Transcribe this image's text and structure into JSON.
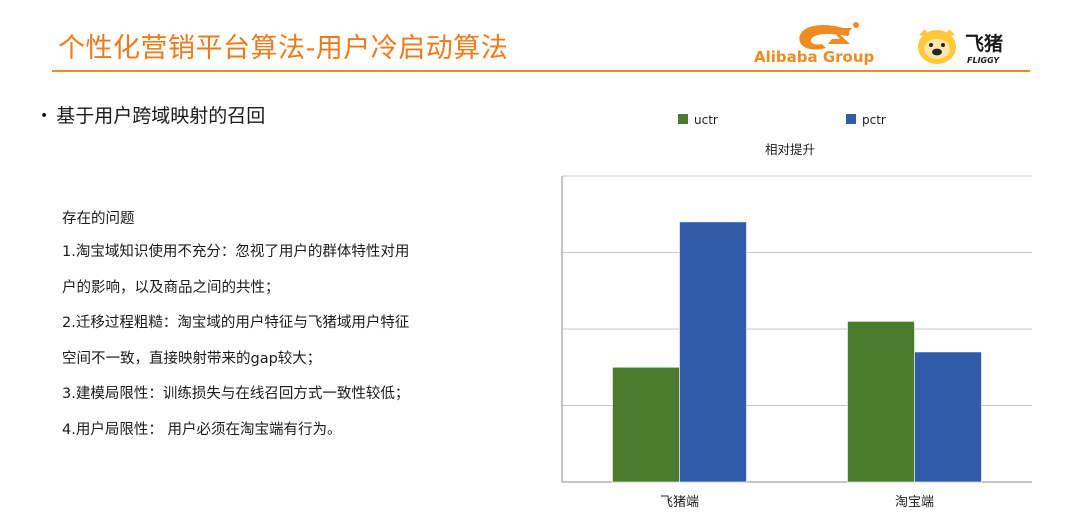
{
  "header": {
    "title": "个性化营销平台算法-用户冷启动算法",
    "alibaba_logo_text": "Alibaba Group",
    "fliggy_logo_cn": "飞猪",
    "fliggy_logo_en": "FLIGGY"
  },
  "bullet": {
    "text": "基于用户跨域映射的召回"
  },
  "issues": {
    "heading": "存在的问题",
    "lines": [
      "1.淘宝域知识使用不充分：忽视了用户的群体特性对用",
      "户的影响，以及商品之间的共性；",
      "2.迁移过程粗糙：淘宝域的用户特征与飞猪域用户特征",
      "空间不一致，直接映射带来的gap较大；",
      "3.建模局限性：训练损失与在线召回方式一致性较低；",
      "4.用户局限性： 用户必须在淘宝端有行为。"
    ]
  },
  "chart_data": {
    "type": "bar",
    "title": "相对提升",
    "categories": [
      "飞猪端",
      "淘宝端"
    ],
    "series": [
      {
        "name": "uctr",
        "values": [
          1.5,
          2.1
        ],
        "color": "#4a7a2c"
      },
      {
        "name": "pctr",
        "values": [
          3.4,
          1.7
        ],
        "color": "#2f5ba8"
      }
    ],
    "ylim": [
      0,
      4
    ],
    "legend": "top",
    "grid": true,
    "y_tick_labels_shown": false
  }
}
